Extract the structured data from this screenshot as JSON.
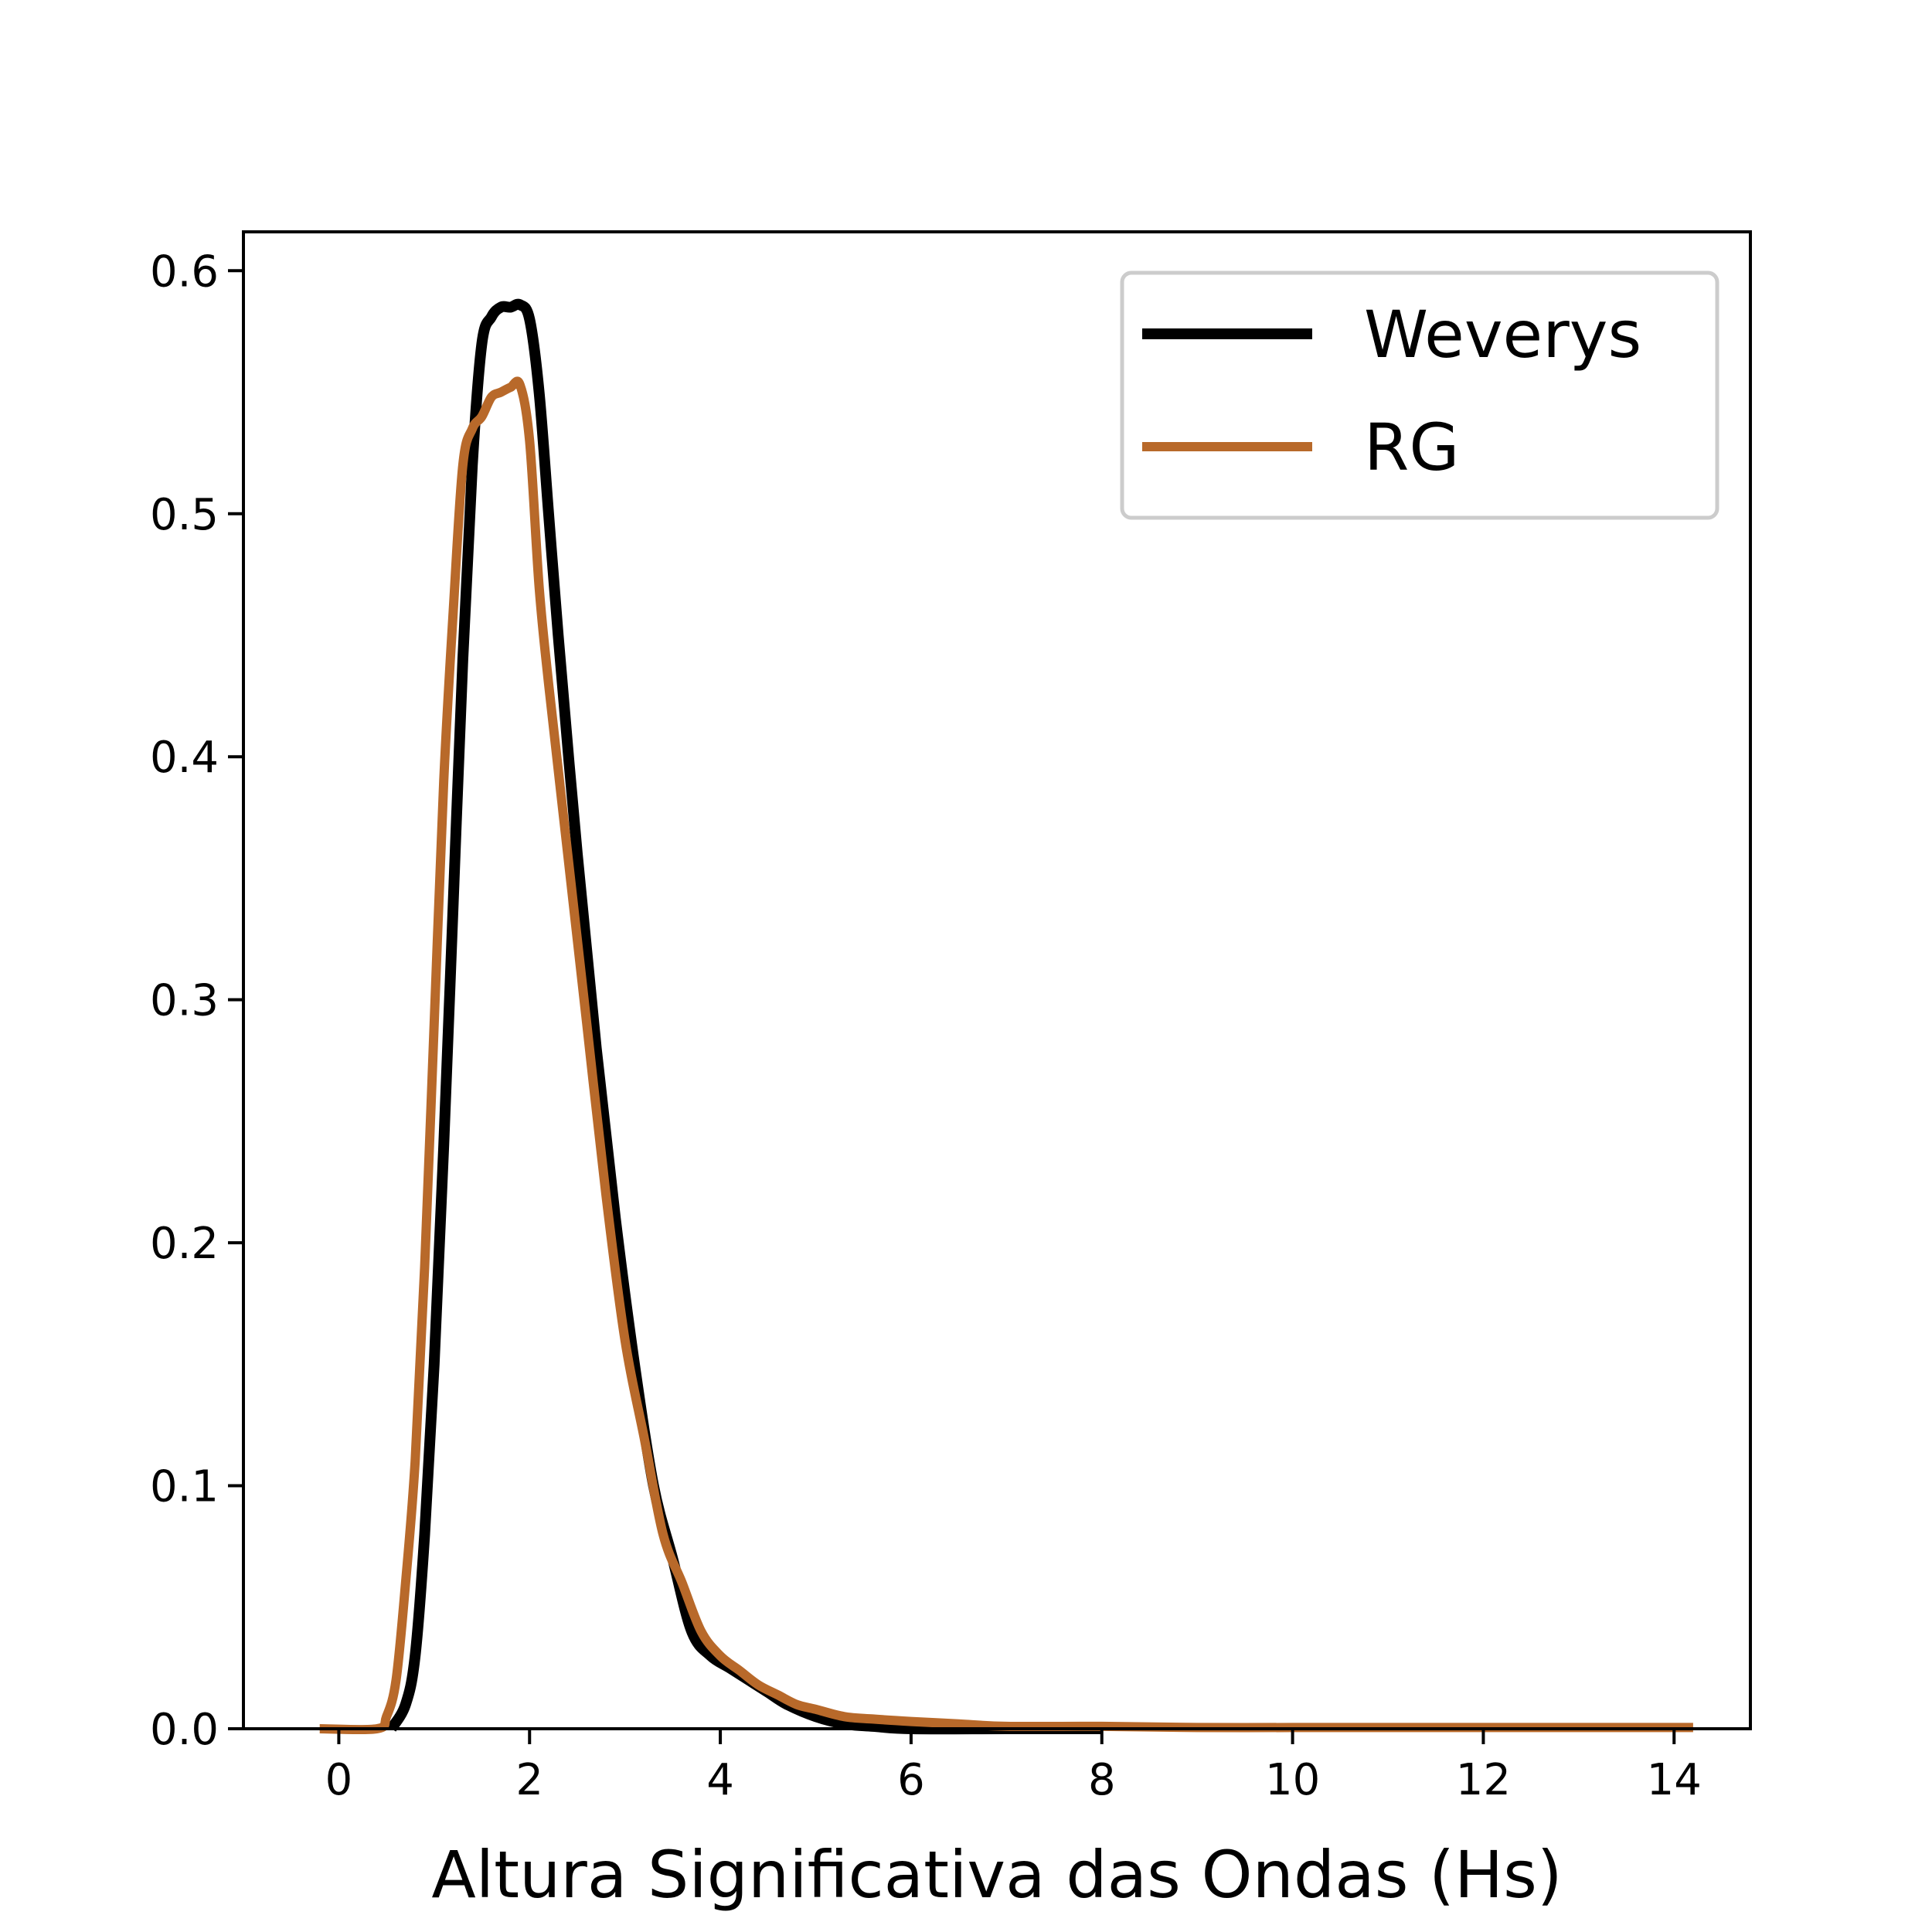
{
  "chart_data": {
    "type": "line",
    "title": "",
    "xlabel": "Altura Significativa das Ondas (Hs)",
    "ylabel": "",
    "xlim": [
      -1.0,
      14.8
    ],
    "ylim": [
      0.0,
      0.616
    ],
    "xticks": [
      0,
      2,
      4,
      6,
      8,
      10,
      12,
      14
    ],
    "xtick_labels": [
      "0",
      "2",
      "4",
      "6",
      "8",
      "10",
      "12",
      "14"
    ],
    "yticks": [
      0.0,
      0.1,
      0.2,
      0.3,
      0.4,
      0.5,
      0.6
    ],
    "ytick_labels": [
      "0.0",
      "0.1",
      "0.2",
      "0.3",
      "0.4",
      "0.5",
      "0.6"
    ],
    "grid": false,
    "legend_position": "top-right",
    "series": [
      {
        "name": "Weverys",
        "color": "#000000",
        "x": [
          0.55,
          0.7,
          0.8,
          0.9,
          1.0,
          1.1,
          1.2,
          1.3,
          1.4,
          1.5,
          1.6,
          1.7,
          1.8,
          1.9,
          2.0,
          2.1,
          2.2,
          2.3,
          2.5,
          2.7,
          2.9,
          3.1,
          3.3,
          3.5,
          3.7,
          3.9,
          4.1,
          4.3,
          4.5,
          4.7,
          5.0,
          5.3,
          5.6,
          6.0,
          7.0,
          8.0
        ],
        "y": [
          0.0,
          0.01,
          0.03,
          0.08,
          0.15,
          0.24,
          0.34,
          0.44,
          0.52,
          0.57,
          0.581,
          0.585,
          0.585,
          0.586,
          0.58,
          0.55,
          0.5,
          0.45,
          0.36,
          0.28,
          0.21,
          0.15,
          0.1,
          0.07,
          0.04,
          0.03,
          0.025,
          0.02,
          0.015,
          0.01,
          0.005,
          0.002,
          0.001,
          0.0,
          0.0,
          0.0
        ],
        "x_end": 7.5
      },
      {
        "name": "RG",
        "color": "#B8692A",
        "x": [
          -0.2,
          0.4,
          0.5,
          0.6,
          0.7,
          0.8,
          0.9,
          1.0,
          1.1,
          1.2,
          1.3,
          1.4,
          1.5,
          1.6,
          1.7,
          1.8,
          1.9,
          2.0,
          2.1,
          2.2,
          2.4,
          2.6,
          2.8,
          3.0,
          3.2,
          3.4,
          3.6,
          3.8,
          4.0,
          4.2,
          4.4,
          4.6,
          4.8,
          5.0,
          5.3,
          5.6,
          6.0,
          6.5,
          7.0,
          8.0,
          9.0,
          10.0,
          11.0,
          12.0,
          13.0,
          14.2
        ],
        "y": [
          0.0,
          0.0,
          0.005,
          0.02,
          0.06,
          0.11,
          0.19,
          0.29,
          0.39,
          0.46,
          0.52,
          0.535,
          0.54,
          0.548,
          0.55,
          0.552,
          0.553,
          0.53,
          0.47,
          0.43,
          0.36,
          0.29,
          0.22,
          0.16,
          0.12,
          0.08,
          0.06,
          0.04,
          0.03,
          0.024,
          0.018,
          0.014,
          0.01,
          0.008,
          0.005,
          0.004,
          0.003,
          0.002,
          0.001,
          0.001,
          0.0005,
          0.0005,
          0.0005,
          0.0005,
          0.0005,
          0.0005
        ]
      }
    ]
  }
}
